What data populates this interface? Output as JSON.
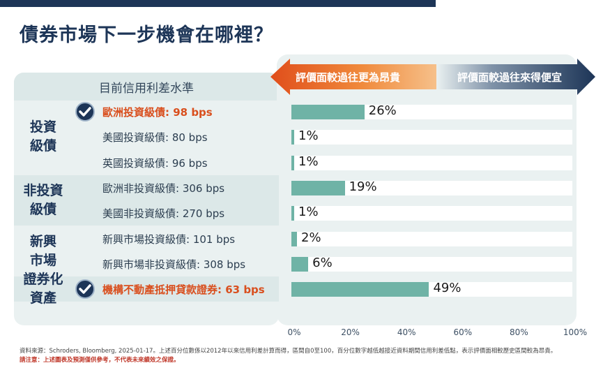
{
  "title": "債券市場下一步機會在哪裡？",
  "left_header": "目前信用利差水準",
  "arrows": {
    "left_label": "評價面較過往更為昂貴",
    "right_label": "評價面較過往來得便宜",
    "left_color": "#e04e1b",
    "right_color": "#1d3557"
  },
  "groups": [
    {
      "label": "投資\n級債"
    },
    {
      "label": "非投資\n級債"
    },
    {
      "label": "新興\n市場"
    },
    {
      "label": "證券化\n資產"
    }
  ],
  "colors": {
    "bar": "#6fb3a6",
    "highlight": "#d94f1e",
    "navy": "#1d3557"
  },
  "chart_data": {
    "type": "bar",
    "orientation": "horizontal",
    "categories": [
      "歐洲投資級債: 98 bps",
      "美國投資級債: 80 bps",
      "英國投資級債: 96 bps",
      "歐洲非投資級債: 306 bps",
      "美國非投資級債: 270 bps",
      "新興市場投資級債: 101 bps",
      "新興市場非投資級債: 308 bps",
      "機構不動產抵押貸款證券: 63 bps"
    ],
    "values": [
      26,
      1,
      1,
      19,
      1,
      2,
      6,
      49
    ],
    "value_labels": [
      "26%",
      "1%",
      "1%",
      "19%",
      "1%",
      "2%",
      "6%",
      "49%"
    ],
    "highlighted": [
      true,
      false,
      false,
      false,
      false,
      false,
      false,
      true
    ],
    "xlim": [
      0,
      100
    ],
    "xticks": [
      "0%",
      "20%",
      "40%",
      "60%",
      "80%",
      "100%"
    ],
    "title": "",
    "xlabel": "",
    "ylabel": ""
  },
  "footnote": "資料來源：Schroders, Bloomberg, 2025-01-17。上述百分位數係以2012年以來信用利差計算而得，區間自0至100，百分位數字越低越接近資料期間信用利差低點，表示評價面相較歷史區間較為昂貴。",
  "warning": "請注意：上述圖表及預測僅供參考，不代表未來績效之保證。"
}
